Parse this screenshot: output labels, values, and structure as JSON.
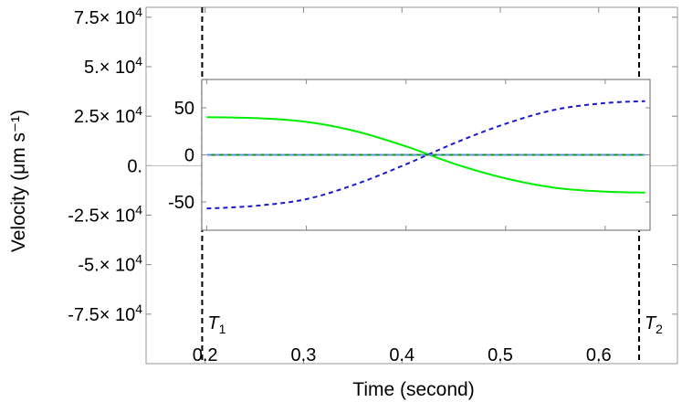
{
  "chart_data": [
    {
      "type": "line",
      "xlabel": "Time (second)",
      "ylabel": "Velocity (μm s⁻¹)",
      "xlim": [
        0.14,
        0.68
      ],
      "ylim": [
        -100000,
        80000
      ],
      "x_ticks": [
        {
          "value": 0.2,
          "label": "0.2"
        },
        {
          "value": 0.3,
          "label": "0.3"
        },
        {
          "value": 0.4,
          "label": "0.4"
        },
        {
          "value": 0.5,
          "label": "0.5"
        },
        {
          "value": 0.6,
          "label": "0.6"
        }
      ],
      "y_ticks": [
        {
          "value": 75000,
          "mant": "7.5",
          "exp": "4"
        },
        {
          "value": 50000,
          "mant": "5.",
          "exp": "4"
        },
        {
          "value": 25000,
          "mant": "2.5",
          "exp": "4"
        },
        {
          "value": 0,
          "mant": "0.",
          "exp": ""
        },
        {
          "value": -25000,
          "mant": "-2.5",
          "exp": "4"
        },
        {
          "value": -50000,
          "mant": "-5.",
          "exp": "4"
        },
        {
          "value": -75000,
          "mant": "-7.5",
          "exp": "4"
        }
      ],
      "tick_multiplier": "× 10",
      "vlines": [
        {
          "x": 0.197,
          "label": "T",
          "sub": "1"
        },
        {
          "x": 0.641,
          "label": "T",
          "sub": "2"
        }
      ],
      "series": [
        {
          "color": "#66bbcc",
          "style": "solid",
          "x": [
            0.197,
            0.641
          ],
          "y": [
            0,
            0
          ]
        }
      ]
    },
    {
      "type": "line",
      "xlim": [
        0.195,
        0.645
      ],
      "ylim": [
        -80,
        80
      ],
      "x_ticks": [
        0.2,
        0.3,
        0.4,
        0.5,
        0.6
      ],
      "y_ticks": [
        {
          "value": 50,
          "label": "50"
        },
        {
          "value": 0,
          "label": "0"
        },
        {
          "value": -50,
          "label": "-50"
        }
      ],
      "series": [
        {
          "color": "#00ee00",
          "style": "solid",
          "x": [
            0.2,
            0.25,
            0.3,
            0.35,
            0.4,
            0.45,
            0.5,
            0.55,
            0.6,
            0.64
          ],
          "y": [
            40,
            39,
            35,
            25,
            9,
            -10,
            -25,
            -35,
            -39,
            -40
          ]
        },
        {
          "color": "#1a1acc",
          "style": "dashed",
          "x": [
            0.2,
            0.25,
            0.3,
            0.35,
            0.4,
            0.45,
            0.5,
            0.55,
            0.6,
            0.64
          ],
          "y": [
            -57,
            -54,
            -47,
            -31,
            -10,
            13,
            33,
            48,
            55,
            57
          ]
        },
        {
          "color": "#009900",
          "style": "solid",
          "x": [
            0.2,
            0.64
          ],
          "y": [
            0,
            0
          ]
        },
        {
          "color": "#6688ee",
          "style": "dashed",
          "x": [
            0.2,
            0.64
          ],
          "y": [
            0,
            0
          ]
        }
      ]
    }
  ]
}
